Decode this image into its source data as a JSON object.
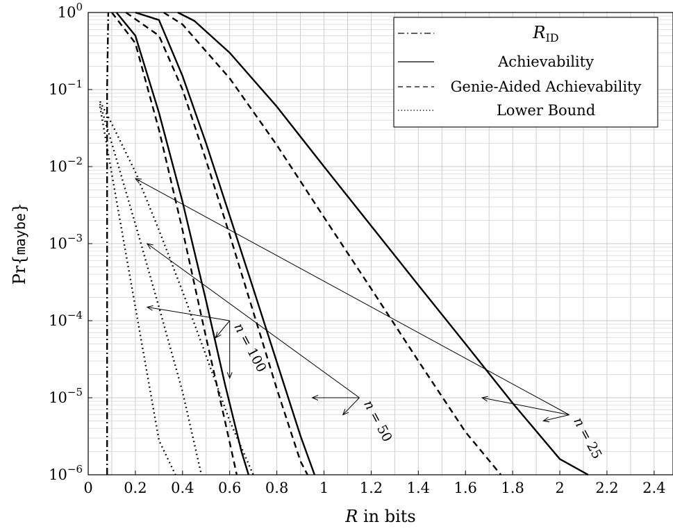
{
  "chart_data": {
    "type": "line",
    "xlabel": "R in bits",
    "xlabel_var": "R",
    "xlabel_rest": " in bits",
    "ylabel": "Pr{maybe}",
    "ylabel_parts": {
      "pre": "Pr{",
      "mono": "maybe",
      "post": "}"
    },
    "xlim": [
      0,
      2.48
    ],
    "ylim_log10": [
      -6,
      0
    ],
    "yscale": "log",
    "grid": true,
    "legend_position": "top-right",
    "x_ticks": [
      {
        "v": 0,
        "label": "0"
      },
      {
        "v": 0.2,
        "label": "0.2"
      },
      {
        "v": 0.4,
        "label": "0.4"
      },
      {
        "v": 0.6,
        "label": "0.6"
      },
      {
        "v": 0.8,
        "label": "0.8"
      },
      {
        "v": 1,
        "label": "1"
      },
      {
        "v": 1.2,
        "label": "1.2"
      },
      {
        "v": 1.4,
        "label": "1.4"
      },
      {
        "v": 1.6,
        "label": "1.6"
      },
      {
        "v": 1.8,
        "label": "1.8"
      },
      {
        "v": 2,
        "label": "2"
      },
      {
        "v": 2.2,
        "label": "2.2"
      },
      {
        "v": 2.4,
        "label": "2.4"
      }
    ],
    "y_ticks": [
      {
        "exp": 0,
        "base": "10",
        "sup": "0"
      },
      {
        "exp": -1,
        "base": "10",
        "sup": "−1"
      },
      {
        "exp": -2,
        "base": "10",
        "sup": "−2"
      },
      {
        "exp": -3,
        "base": "10",
        "sup": "−3"
      },
      {
        "exp": -4,
        "base": "10",
        "sup": "−4"
      },
      {
        "exp": -5,
        "base": "10",
        "sup": "−5"
      },
      {
        "exp": -6,
        "base": "10",
        "sup": "−6"
      }
    ],
    "legend": [
      {
        "label_var": "R",
        "label_sub": "ID",
        "style": "dashdot"
      },
      {
        "label": "Achievability",
        "style": "solid"
      },
      {
        "label": "Genie-Aided Achievability",
        "style": "dashed"
      },
      {
        "label": "Lower Bound",
        "style": "dotted"
      }
    ],
    "series": [
      {
        "style": "dashdot",
        "points": [
          [
            0.08,
            1e-06
          ],
          [
            0.08,
            0.001
          ],
          [
            0.08,
            0.1
          ],
          [
            0.085,
            1
          ]
        ]
      },
      {
        "group": "n = 25",
        "style": "solid",
        "points": [
          [
            0.38,
            1
          ],
          [
            0.45,
            0.78
          ],
          [
            0.6,
            0.3
          ],
          [
            0.8,
            0.06
          ],
          [
            1.0,
            0.01
          ],
          [
            1.2,
            0.0017
          ],
          [
            1.4,
            0.00029
          ],
          [
            1.6,
            5e-05
          ],
          [
            1.8,
            8.5e-06
          ],
          [
            2.0,
            1.6e-06
          ],
          [
            2.12,
            1e-06
          ]
        ]
      },
      {
        "group": "n = 25",
        "style": "dashed",
        "points": [
          [
            0.32,
            1
          ],
          [
            0.4,
            0.7
          ],
          [
            0.6,
            0.14
          ],
          [
            0.8,
            0.019
          ],
          [
            1.0,
            0.0022
          ],
          [
            1.2,
            0.00026
          ],
          [
            1.4,
            3e-05
          ],
          [
            1.6,
            3.6e-06
          ],
          [
            1.75,
            1e-06
          ]
        ]
      },
      {
        "group": "n = 25",
        "style": "dotted",
        "points": [
          [
            0.05,
            0.07
          ],
          [
            0.1,
            0.036
          ],
          [
            0.2,
            0.0085
          ],
          [
            0.3,
            0.0015
          ],
          [
            0.4,
            0.00024
          ],
          [
            0.5,
            3.5e-05
          ],
          [
            0.6,
            5e-06
          ],
          [
            0.7,
            1e-06
          ]
        ]
      },
      {
        "group": "n = 50",
        "style": "solid",
        "points": [
          [
            0.2,
            1
          ],
          [
            0.3,
            0.8
          ],
          [
            0.4,
            0.15
          ],
          [
            0.5,
            0.02
          ],
          [
            0.6,
            0.0023
          ],
          [
            0.7,
            0.00026
          ],
          [
            0.8,
            2.9e-05
          ],
          [
            0.9,
            3.2e-06
          ],
          [
            0.96,
            1e-06
          ]
        ]
      },
      {
        "group": "n = 50",
        "style": "dashed",
        "points": [
          [
            0.16,
            1
          ],
          [
            0.3,
            0.5
          ],
          [
            0.4,
            0.1
          ],
          [
            0.5,
            0.012
          ],
          [
            0.6,
            0.0013
          ],
          [
            0.7,
            0.00013
          ],
          [
            0.8,
            1.3e-05
          ],
          [
            0.9,
            1.5e-06
          ],
          [
            0.93,
            1e-06
          ]
        ]
      },
      {
        "group": "n = 50",
        "style": "dotted",
        "points": [
          [
            0.05,
            0.065
          ],
          [
            0.1,
            0.02
          ],
          [
            0.2,
            0.0018
          ],
          [
            0.3,
            0.00015
          ],
          [
            0.4,
            1.2e-05
          ],
          [
            0.48,
            1e-06
          ]
        ]
      },
      {
        "group": "n = 100",
        "style": "solid",
        "points": [
          [
            0.12,
            1
          ],
          [
            0.2,
            0.5
          ],
          [
            0.3,
            0.05
          ],
          [
            0.4,
            0.0035
          ],
          [
            0.5,
            0.00018
          ],
          [
            0.58,
            1.5e-05
          ],
          [
            0.65,
            2e-06
          ],
          [
            0.68,
            1e-06
          ]
        ]
      },
      {
        "group": "n = 100",
        "style": "dashed",
        "points": [
          [
            0.1,
            1
          ],
          [
            0.2,
            0.4
          ],
          [
            0.3,
            0.03
          ],
          [
            0.4,
            0.0015
          ],
          [
            0.5,
            6e-05
          ],
          [
            0.58,
            5e-06
          ],
          [
            0.63,
            1e-06
          ]
        ]
      },
      {
        "group": "n = 100",
        "style": "dotted",
        "points": [
          [
            0.05,
            0.06
          ],
          [
            0.1,
            0.008
          ],
          [
            0.2,
            0.00015
          ],
          [
            0.3,
            2.8e-06
          ],
          [
            0.37,
            1e-06
          ]
        ]
      }
    ],
    "annotations": [
      {
        "label": "n = 25",
        "text_var": "n",
        "text_rest": " = 25",
        "anchor": [
          2.04,
          6e-06
        ],
        "targets": [
          [
            0.2,
            0.007
          ],
          [
            1.67,
            1e-05
          ],
          [
            1.93,
            5e-06
          ]
        ]
      },
      {
        "label": "n = 50",
        "text_var": "n",
        "text_rest": " = 50",
        "anchor": [
          1.15,
          1e-05
        ],
        "targets": [
          [
            0.25,
            0.001
          ],
          [
            0.95,
            1e-05
          ],
          [
            1.08,
            6e-06
          ]
        ]
      },
      {
        "label": "n = 100",
        "text_var": "n",
        "text_rest": " = 100",
        "anchor": [
          0.6,
          0.0001
        ],
        "targets": [
          [
            0.25,
            0.00015
          ],
          [
            0.54,
            6e-05
          ],
          [
            0.6,
            1.8e-05
          ]
        ]
      }
    ]
  }
}
